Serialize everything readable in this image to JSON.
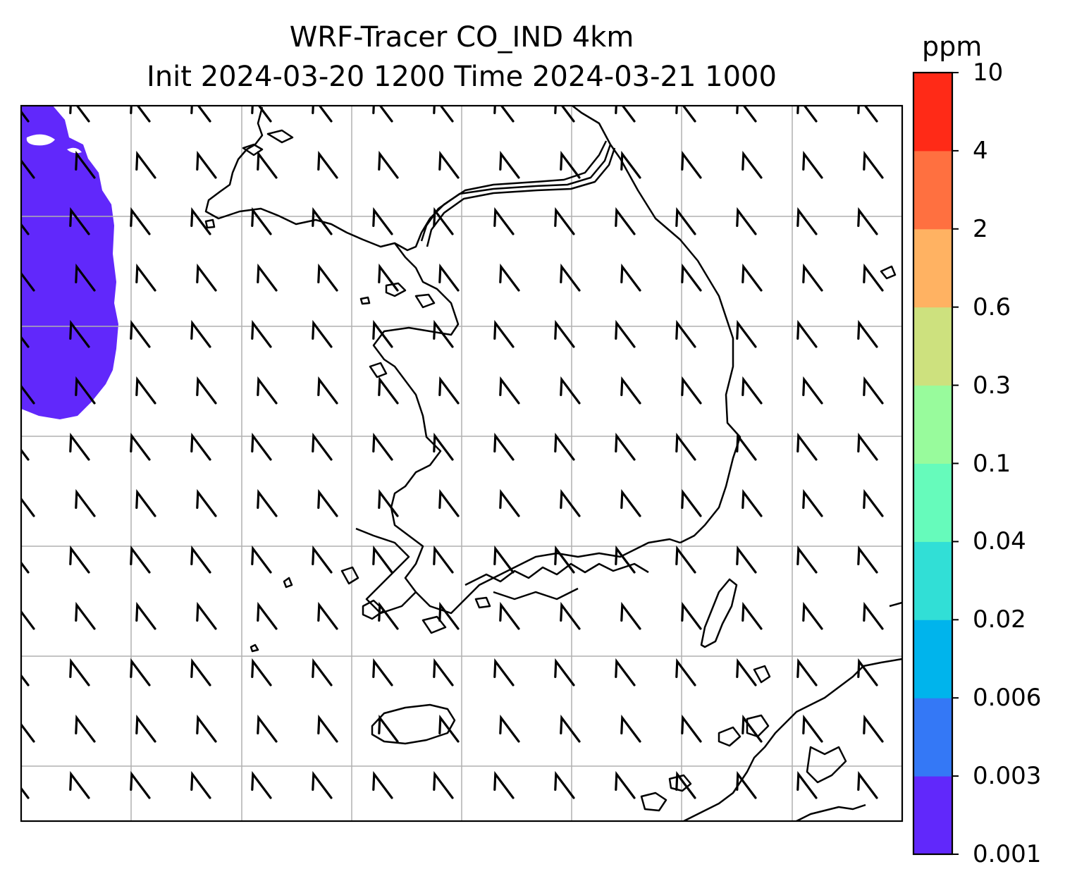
{
  "title": {
    "line1": "WRF-Tracer CO_IND 4km",
    "line2": "Init 2024-03-20 1200 Time 2024-03-21 1000"
  },
  "colorbar": {
    "unit": "ppm",
    "levels": [
      "0.001",
      "0.003",
      "0.006",
      "0.02",
      "0.04",
      "0.1",
      "0.3",
      "0.6",
      "2",
      "4",
      "10"
    ],
    "colors": [
      "#6128fb",
      "#3478f6",
      "#00b4ec",
      "#31dfd6",
      "#66fbbb",
      "#98fb9c",
      "#cde17e",
      "#ffb262",
      "#ff7040",
      "#ff2a17"
    ]
  },
  "map": {
    "tracer_field_color": "#6128fb",
    "tracer_field_level": "0.001-0.003 ppm",
    "gridline_color": "#b0b0b0",
    "coastline_color": "#000000",
    "wind_barbs": "northwesterly, ~10 kt (one full barb each)"
  }
}
